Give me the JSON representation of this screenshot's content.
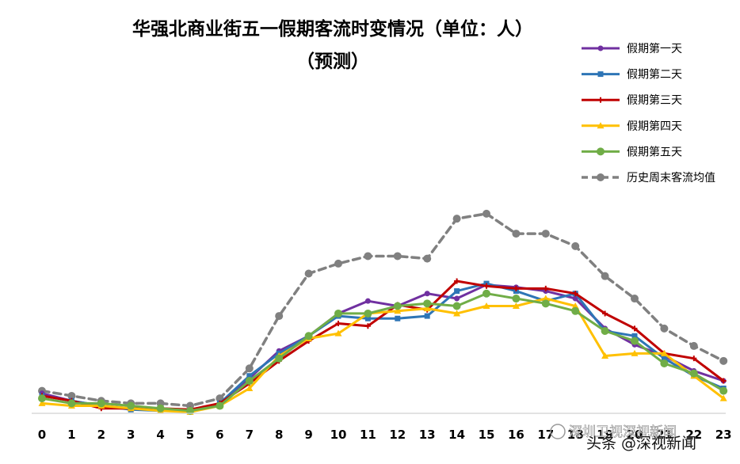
{
  "chart_data": {
    "type": "line",
    "title_line1": "华强北商业街五一假期客流时变情况（单位：人）",
    "title_line2": "（预测）",
    "x": [
      0,
      1,
      2,
      3,
      4,
      5,
      6,
      7,
      8,
      9,
      10,
      11,
      12,
      13,
      14,
      15,
      16,
      17,
      18,
      19,
      20,
      21,
      22,
      23
    ],
    "xlabels": [
      "0",
      "1",
      "2",
      "3",
      "4",
      "5",
      "6",
      "7",
      "8",
      "9",
      "10",
      "11",
      "12",
      "13",
      "14",
      "15",
      "16",
      "17",
      "18",
      "19",
      "20",
      "21",
      "22",
      "23"
    ],
    "ylim": [
      0,
      165
    ],
    "grid": false,
    "legend_position": "top-right",
    "series": [
      {
        "name": "假期第一天",
        "color": "#7030A0",
        "marker": "circle",
        "dash": false,
        "values": [
          16,
          10,
          6,
          4,
          4,
          2,
          8,
          28,
          50,
          62,
          80,
          90,
          86,
          96,
          92,
          103,
          101,
          98,
          92,
          68,
          55,
          46,
          34,
          26
        ]
      },
      {
        "name": "假期第二天",
        "color": "#2E75B6",
        "marker": "square",
        "dash": false,
        "values": [
          14,
          10,
          6,
          3,
          2,
          2,
          8,
          30,
          48,
          62,
          78,
          76,
          76,
          78,
          98,
          104,
          98,
          90,
          96,
          66,
          62,
          44,
          30,
          20
        ]
      },
      {
        "name": "假期第三天",
        "color": "#C00000",
        "marker": "plus",
        "dash": false,
        "values": [
          14,
          10,
          4,
          4,
          4,
          3,
          8,
          24,
          42,
          58,
          72,
          70,
          87,
          83,
          106,
          102,
          100,
          100,
          96,
          80,
          68,
          48,
          44,
          26
        ]
      },
      {
        "name": "假期第四天",
        "color": "#FFC000",
        "marker": "triangle",
        "dash": false,
        "values": [
          8,
          6,
          6,
          4,
          2,
          1,
          6,
          20,
          46,
          60,
          64,
          80,
          82,
          84,
          80,
          86,
          86,
          92,
          86,
          46,
          48,
          48,
          30,
          12
        ]
      },
      {
        "name": "假期第五天",
        "color": "#70AD47",
        "marker": "circle",
        "dash": false,
        "values": [
          12,
          8,
          8,
          6,
          4,
          2,
          6,
          26,
          44,
          62,
          80,
          80,
          86,
          88,
          86,
          96,
          92,
          88,
          82,
          66,
          58,
          40,
          32,
          18
        ]
      },
      {
        "name": "历史周末客流均值",
        "color": "#808080",
        "marker": "circle",
        "dash": true,
        "values": [
          18,
          14,
          10,
          8,
          8,
          6,
          12,
          36,
          78,
          112,
          120,
          126,
          126,
          124,
          156,
          160,
          144,
          144,
          134,
          110,
          92,
          68,
          54,
          42
        ]
      }
    ]
  },
  "watermark": {
    "text1": "深圳卫视深视新闻",
    "text2": "头条 @深视新闻"
  }
}
